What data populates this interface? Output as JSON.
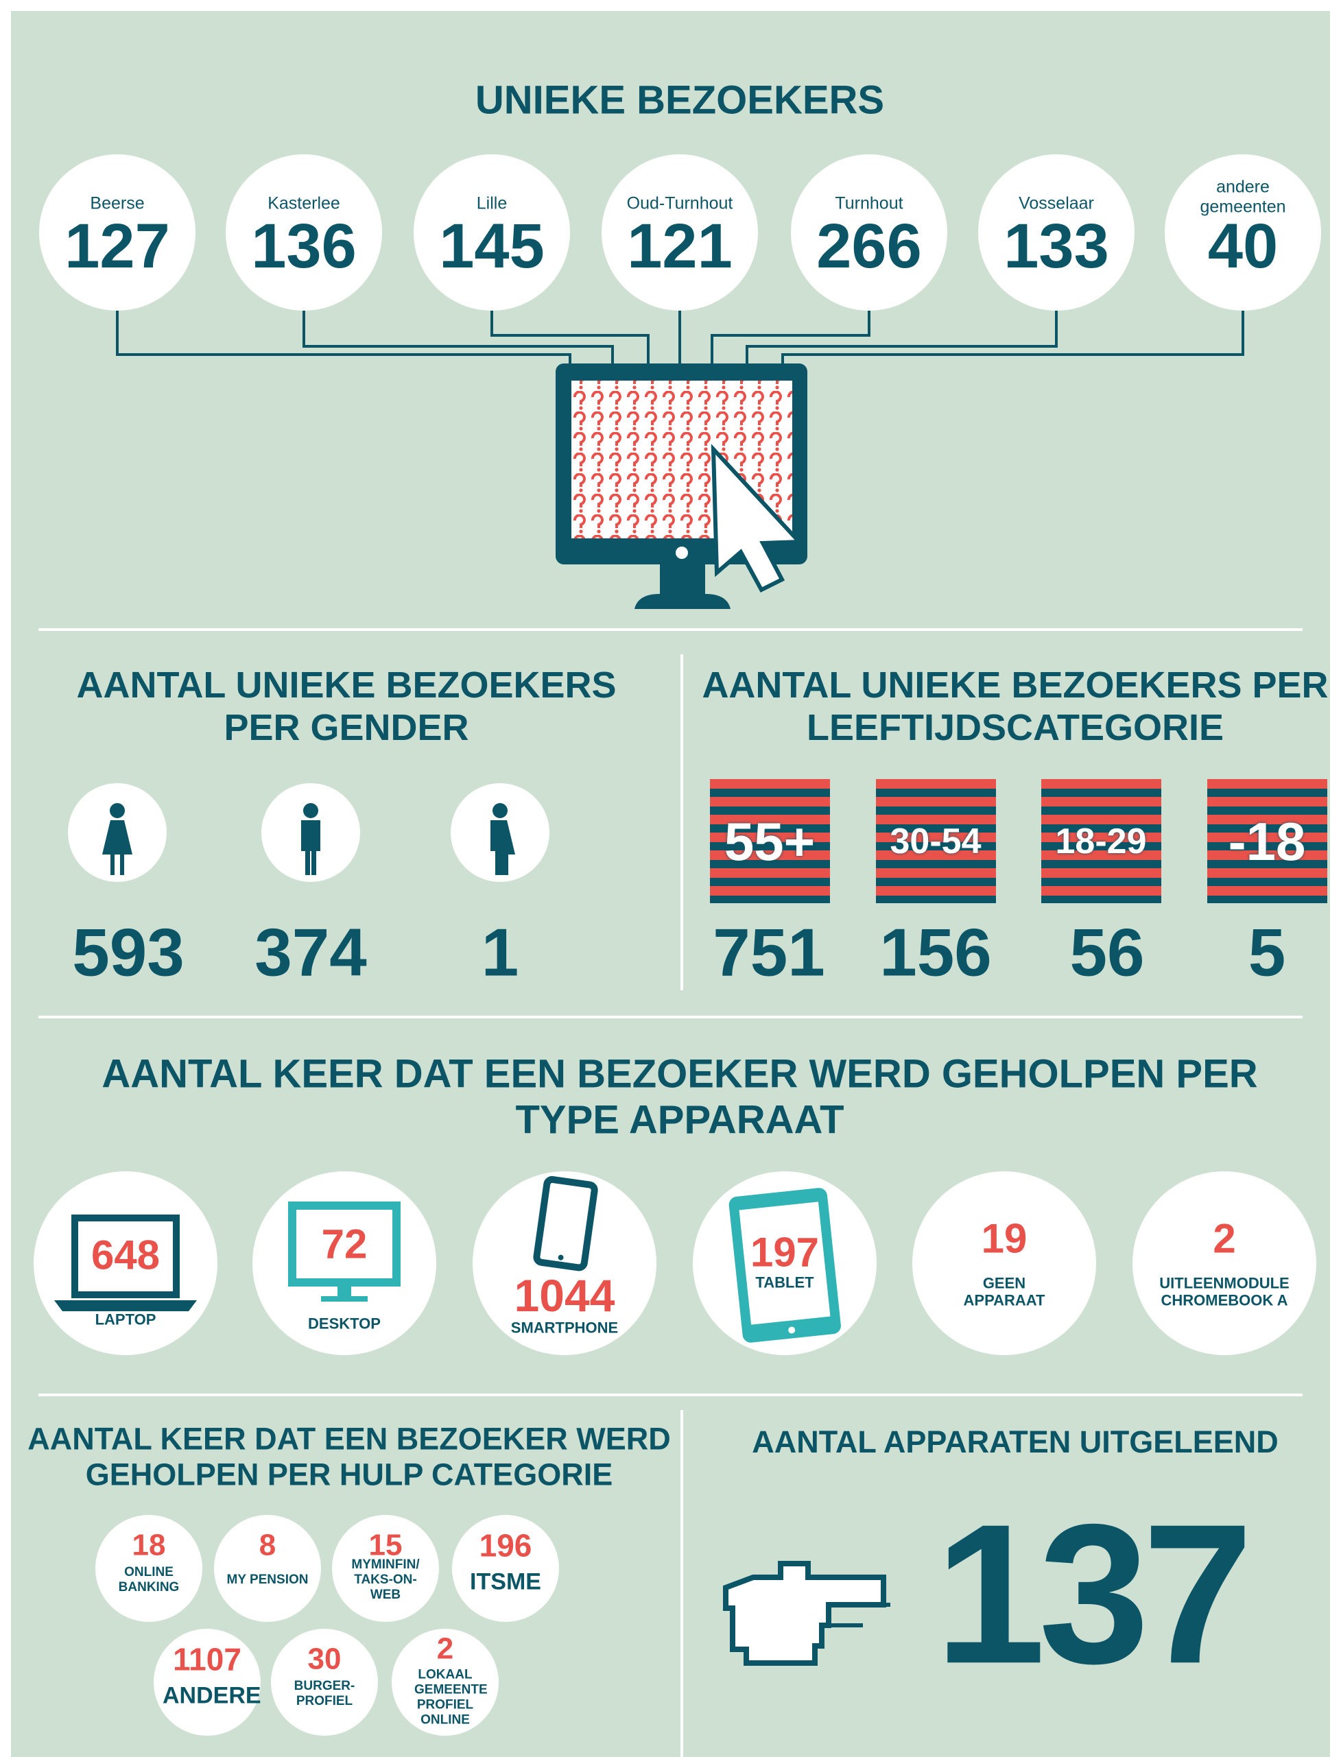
{
  "visitors": {
    "title": "UNIEKE BEZOEKERS",
    "items": [
      {
        "label": "Beerse",
        "value": 127
      },
      {
        "label": "Kasterlee",
        "value": 136
      },
      {
        "label": "Lille",
        "value": 145
      },
      {
        "label": "Oud-Turnhout",
        "value": 121
      },
      {
        "label": "Turnhout",
        "value": 266
      },
      {
        "label": "Vosselaar",
        "value": 133
      },
      {
        "label": "andere gemeenten",
        "value": 40
      }
    ]
  },
  "gender": {
    "title": "AANTAL UNIEKE BEZOEKERS PER GENDER",
    "values": [
      593,
      374,
      1
    ]
  },
  "age": {
    "title": "AANTAL UNIEKE BEZOEKERS PER LEEFTIJDSCATEGORIE",
    "items": [
      {
        "label": "55+",
        "value": 751
      },
      {
        "label": "30-54",
        "value": 156
      },
      {
        "label": "18-29",
        "value": 56
      },
      {
        "label": "-18",
        "value": 5
      }
    ]
  },
  "devices": {
    "title": "AANTAL KEER DAT EEN BEZOEKER WERD GEHOLPEN PER TYPE APPARAAT",
    "items": [
      {
        "value": 648,
        "label": "LAPTOP"
      },
      {
        "value": 72,
        "label": "DESKTOP"
      },
      {
        "value": 1044,
        "label": "SMARTPHONE"
      },
      {
        "value": 197,
        "label": "TABLET"
      },
      {
        "value": 19,
        "label": "GEEN APPARAAT"
      },
      {
        "value": 2,
        "label": "UITLEENMODULE CHROMEBOOK A"
      }
    ]
  },
  "help": {
    "title": "AANTAL KEER DAT EEN BEZOEKER WERD GEHOLPEN PER HULP CATEGORIE",
    "items": [
      {
        "value": 18,
        "label": "ONLINE BANKING"
      },
      {
        "value": 8,
        "label": "MY PENSION"
      },
      {
        "value": 15,
        "label": "MYMINFIN/ TAKS-ON-WEB"
      },
      {
        "value": 196,
        "label": "ITSME"
      },
      {
        "value": 1107,
        "label": "ANDERE"
      },
      {
        "value": 30,
        "label": "BURGER-PROFIEL"
      },
      {
        "value": 2,
        "label": "LOKAAL GEMEENTE PROFIEL ONLINE"
      }
    ]
  },
  "loaned": {
    "title": "AANTAL APPARATEN UITGELEEND",
    "value": 137
  }
}
